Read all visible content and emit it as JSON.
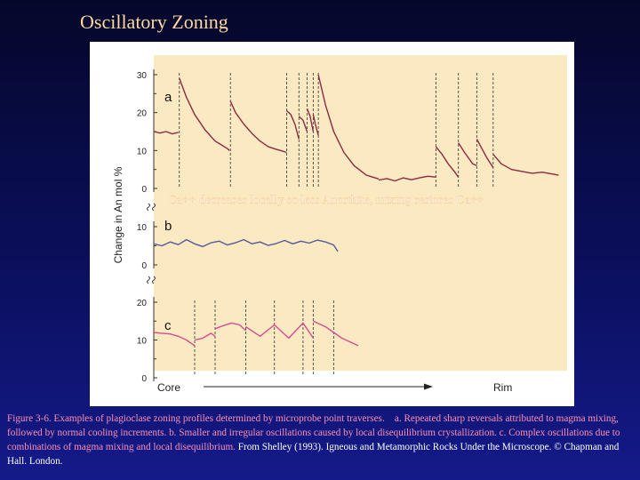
{
  "slide": {
    "title": "Oscillatory Zoning"
  },
  "chart_data": {
    "type": "line",
    "ylabel": "Change in An mol %",
    "xlabel_left": "Core",
    "xlabel_right": "Rim",
    "annotation": "Ca++ decreases locally so less Anorthite, mixing restores  Ca++",
    "panels": [
      {
        "label": "a",
        "yticks": [
          "0",
          "10",
          "20",
          "30"
        ],
        "ylim": [
          0,
          30
        ],
        "color": "#8a2a44",
        "segments": [
          {
            "x": [
              0,
              3,
              6,
              9,
              12
            ],
            "y": [
              15,
              14.6,
              15,
              14.4,
              14.8
            ]
          },
          {
            "x": [
              12.5,
              16,
              20,
              25,
              30,
              33,
              36,
              37
            ],
            "y": [
              29,
              24,
              19.5,
              15.5,
              12.5,
              11.5,
              10.5,
              10
            ]
          },
          {
            "x": [
              37.5,
              40,
              44,
              48,
              52,
              56,
              60,
              62,
              65
            ],
            "y": [
              23,
              20,
              17,
              14.5,
              12.5,
              11,
              10.3,
              10,
              9.5
            ]
          },
          {
            "x": [
              65,
              67,
              69,
              71
            ],
            "y": [
              20.5,
              19.5,
              17,
              13
            ]
          },
          {
            "x": [
              71,
              73,
              75
            ],
            "y": [
              19,
              18,
              15
            ]
          },
          {
            "x": [
              75,
              76.5,
              78
            ],
            "y": [
              21,
              19,
              15
            ]
          },
          {
            "x": [
              78,
              79,
              80.5
            ],
            "y": [
              19.5,
              17,
              14
            ]
          },
          {
            "x": [
              80.5,
              84,
              88,
              93,
              98,
              104,
              110
            ],
            "y": [
              30,
              22,
              15,
              9.5,
              6,
              3.5,
              2.5
            ]
          },
          {
            "x": [
              110,
              114,
              118,
              122,
              126,
              130,
              134,
              138
            ],
            "y": [
              2.2,
              2.6,
              2,
              2.8,
              2.3,
              2.8,
              3.2,
              3
            ]
          },
          {
            "x": [
              138,
              141,
              144,
              147,
              149
            ],
            "y": [
              11,
              9,
              6.5,
              4.5,
              3
            ]
          },
          {
            "x": [
              149,
              152,
              156,
              158
            ],
            "y": [
              12,
              9.5,
              6.5,
              6
            ]
          },
          {
            "x": [
              158,
              160,
              163,
              166
            ],
            "y": [
              13,
              11,
              8,
              5.5
            ]
          },
          {
            "x": [
              166,
              170,
              175,
              180,
              185,
              190,
              195,
              198
            ],
            "y": [
              9,
              6.5,
              5,
              4.5,
              4,
              4.3,
              3.8,
              3.5
            ]
          }
        ],
        "reversals": [
          12.5,
          37.5,
          65,
          71,
          75,
          78,
          80.5,
          138,
          149,
          158,
          166
        ]
      },
      {
        "label": "b",
        "yticks": [
          "0",
          "10"
        ],
        "ylim": [
          0,
          10
        ],
        "color": "#525a9e",
        "segments": [
          {
            "x": [
              0,
              4,
              8,
              12,
              16,
              20,
              24,
              28,
              32,
              36,
              40,
              44,
              48,
              52,
              56,
              60,
              64,
              68,
              72,
              76,
              80,
              84,
              88,
              90
            ],
            "y": [
              5.5,
              5,
              6,
              5.3,
              6.6,
              5.5,
              4.8,
              5.8,
              6.2,
              5.2,
              5.8,
              6.6,
              5.5,
              6,
              5.1,
              5.6,
              6.4,
              5.5,
              6.2,
              5.7,
              6.5,
              6,
              5.2,
              3.5
            ]
          }
        ],
        "reversals": []
      },
      {
        "label": "c",
        "yticks": [
          "0",
          "10",
          "20"
        ],
        "ylim": [
          0,
          20
        ],
        "color": "#d64b92",
        "segments": [
          {
            "x": [
              0,
              4,
              8,
              12,
              16,
              20
            ],
            "y": [
              12,
              11.8,
              11.6,
              11,
              10,
              8.5
            ]
          },
          {
            "x": [
              20,
              24,
              28,
              30
            ],
            "y": [
              10,
              10.5,
              11.8,
              11
            ]
          },
          {
            "x": [
              30,
              34,
              38,
              42,
              45
            ],
            "y": [
              13,
              13.8,
              14.5,
              14,
              12.5
            ]
          },
          {
            "x": [
              45,
              52,
              59,
              66,
              73,
              78
            ],
            "y": [
              13.5,
              11,
              14,
              10.5,
              14.5,
              10.5
            ]
          },
          {
            "x": [
              78,
              84,
              88,
              92,
              96,
              100
            ],
            "y": [
              15,
              13.5,
              12,
              10.5,
              9.5,
              8.5
            ]
          }
        ],
        "reversals": [
          20,
          30,
          45,
          59,
          73,
          78,
          88
        ]
      }
    ]
  },
  "caption": {
    "main": "Figure 3-6. Examples of plagioclase zoning profiles determined by microprobe point traverses.",
    "a_text": "a. Repeated sharp reversals attributed to magma mixing, followed by normal cooling increments.",
    "b_text": "b. Smaller and irregular oscillations caused by local disequilibrium crystallization.",
    "c_text": "c. Complex oscillations due to combinations of magma mixing and local disequilibrium.",
    "credit": "From Shelley (1993). Igneous and Metamorphic Rocks Under the Microscope. © Chapman and Hall. London."
  }
}
